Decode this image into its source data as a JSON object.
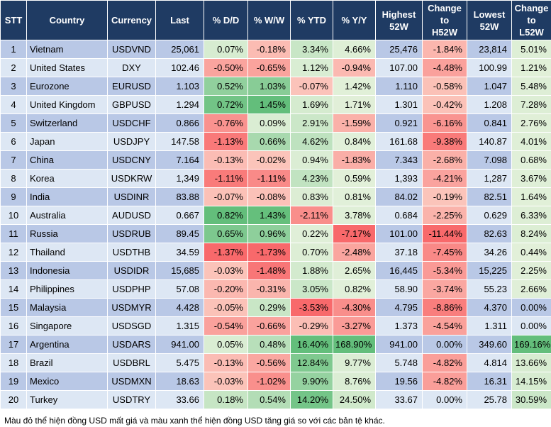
{
  "chart_data": {
    "type": "table",
    "columns": [
      "STT",
      "Country",
      "Currency",
      "Last",
      "% D/D",
      "% W/W",
      "% YTD",
      "% Y/Y",
      "Highest 52W",
      "Change to H52W",
      "Lowest 52W",
      "Change to L52W"
    ],
    "header_lines": [
      [
        "STT"
      ],
      [
        "Country"
      ],
      [
        "Currency"
      ],
      [
        "Last"
      ],
      [
        "% D/D"
      ],
      [
        "% W/W"
      ],
      [
        "% YTD"
      ],
      [
        "% Y/Y"
      ],
      [
        "Highest",
        "52W"
      ],
      [
        "Change",
        "to",
        "H52W"
      ],
      [
        "Lowest",
        "52W"
      ],
      [
        "Change",
        "to",
        "L52W"
      ]
    ],
    "rows": [
      [
        "1",
        "Vietnam",
        "USDVND",
        "25,061",
        "0.07%",
        "-0.18%",
        "3.34%",
        "4.66%",
        "25,476",
        "-1.84%",
        "23,814",
        "5.01%"
      ],
      [
        "2",
        "United States",
        "DXY",
        "102.46",
        "-0.50%",
        "-0.65%",
        "1.12%",
        "-0.94%",
        "107.00",
        "-4.48%",
        "100.99",
        "1.21%"
      ],
      [
        "3",
        "Eurozone",
        "EURUSD",
        "1.103",
        "0.52%",
        "1.03%",
        "-0.07%",
        "1.42%",
        "1.110",
        "-0.58%",
        "1.047",
        "5.48%"
      ],
      [
        "4",
        "United Kingdom",
        "GBPUSD",
        "1.294",
        "0.72%",
        "1.45%",
        "1.69%",
        "1.71%",
        "1.301",
        "-0.42%",
        "1.208",
        "7.28%"
      ],
      [
        "5",
        "Switzerland",
        "USDCHF",
        "0.866",
        "-0.76%",
        "0.09%",
        "2.91%",
        "-1.59%",
        "0.921",
        "-6.16%",
        "0.841",
        "2.76%"
      ],
      [
        "6",
        "Japan",
        "USDJPY",
        "147.58",
        "-1.13%",
        "0.66%",
        "4.62%",
        "0.84%",
        "161.68",
        "-9.38%",
        "140.87",
        "4.01%"
      ],
      [
        "7",
        "China",
        "USDCNY",
        "7.164",
        "-0.13%",
        "-0.02%",
        "0.94%",
        "-1.83%",
        "7.343",
        "-2.68%",
        "7.098",
        "0.68%"
      ],
      [
        "8",
        "Korea",
        "USDKRW",
        "1,349",
        "-1.11%",
        "-1.11%",
        "4.23%",
        "0.59%",
        "1,393",
        "-4.21%",
        "1,287",
        "3.67%"
      ],
      [
        "9",
        "India",
        "USDINR",
        "83.88",
        "-0.07%",
        "-0.08%",
        "0.83%",
        "0.81%",
        "84.02",
        "-0.19%",
        "82.51",
        "1.64%"
      ],
      [
        "10",
        "Australia",
        "AUDUSD",
        "0.667",
        "0.82%",
        "1.43%",
        "-2.11%",
        "3.78%",
        "0.684",
        "-2.25%",
        "0.629",
        "6.33%"
      ],
      [
        "11",
        "Russia",
        "USDRUB",
        "89.45",
        "0.65%",
        "0.96%",
        "0.22%",
        "-7.17%",
        "101.00",
        "-11.44%",
        "82.63",
        "8.24%"
      ],
      [
        "12",
        "Thailand",
        "USDTHB",
        "34.59",
        "-1.37%",
        "-1.73%",
        "0.70%",
        "-2.48%",
        "37.18",
        "-7.45%",
        "34.26",
        "0.44%"
      ],
      [
        "13",
        "Indonesia",
        "USDIDR",
        "15,685",
        "-0.03%",
        "-1.48%",
        "1.88%",
        "2.65%",
        "16,445",
        "-5.34%",
        "15,225",
        "2.25%"
      ],
      [
        "14",
        "Philippines",
        "USDPHP",
        "57.08",
        "-0.20%",
        "-0.31%",
        "3.05%",
        "0.82%",
        "58.90",
        "-3.74%",
        "55.23",
        "2.66%"
      ],
      [
        "15",
        "Malaysia",
        "USDMYR",
        "4.428",
        "-0.05%",
        "0.29%",
        "-3.53%",
        "-4.30%",
        "4.795",
        "-8.86%",
        "4.370",
        "0.00%"
      ],
      [
        "16",
        "Singapore",
        "USDSGD",
        "1.315",
        "-0.54%",
        "-0.66%",
        "-0.29%",
        "-3.27%",
        "1.373",
        "-4.54%",
        "1.311",
        "0.00%"
      ],
      [
        "17",
        "Argentina",
        "USDARS",
        "941.00",
        "0.05%",
        "0.48%",
        "16.40%",
        "168.90%",
        "941.00",
        "0.00%",
        "349.60",
        "169.16%"
      ],
      [
        "18",
        "Brazil",
        "USDBRL",
        "5.475",
        "-0.13%",
        "-0.56%",
        "12.84%",
        "9.77%",
        "5.748",
        "-4.82%",
        "4.814",
        "13.66%"
      ],
      [
        "19",
        "Mexico",
        "USDMXN",
        "18.63",
        "-0.03%",
        "-1.02%",
        "9.90%",
        "8.76%",
        "19.56",
        "-4.82%",
        "16.31",
        "14.15%"
      ],
      [
        "20",
        "Turkey",
        "USDTRY",
        "33.66",
        "0.18%",
        "0.54%",
        "14.20%",
        "24.50%",
        "33.67",
        "0.00%",
        "25.78",
        "30.59%"
      ]
    ],
    "color_scale": {
      "negative": "#f8696b",
      "neutral": "#fce4d6",
      "positive": "#63be7b",
      "header_bg": "#1f3b63",
      "row_odd": "#b9c8e6",
      "row_even": "#dde7f4"
    }
  },
  "footnote": "Màu đỏ thể hiện đồng USD mất giá và màu xanh thể hiện đồng USD tăng giá so với các bản tệ khác."
}
